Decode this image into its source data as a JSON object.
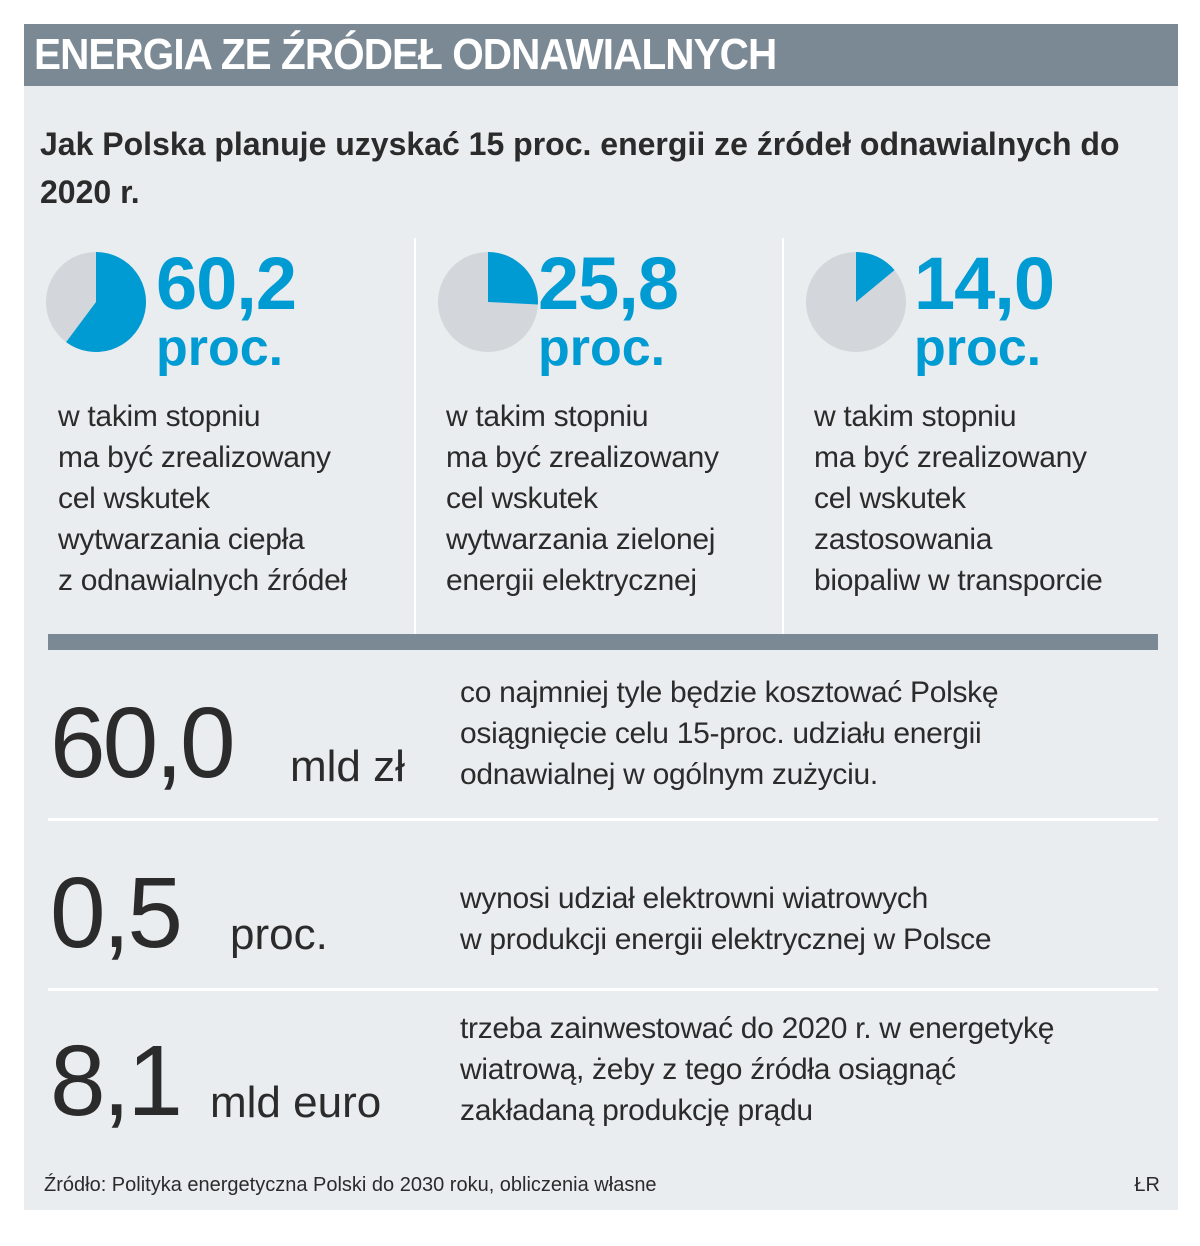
{
  "header": {
    "title": "ENERGIA ZE ŹRÓDEŁ ODNAWIALNYCH"
  },
  "subtitle": "Jak Polska planuje uzyskać 15 proc. energii ze źródeł odnawialnych do 2020 r.",
  "colors": {
    "accent": "#009bd2",
    "pie_base": "#d3d7db",
    "header_bg": "#7b8995",
    "panel_bg": "#eaedef"
  },
  "chart_data": {
    "type": "pie",
    "series": [
      {
        "value": 60.2,
        "value_label": "60,2",
        "unit": "proc.",
        "description": "w takim stopniu\nma być zrealizowany\ncel wskutek\nwytwarzania ciepła\nz odnawialnych źródeł"
      },
      {
        "value": 25.8,
        "value_label": "25,8",
        "unit": "proc.",
        "description": "w takim stopniu\nma być zrealizowany\ncel wskutek\nwytwarzania zielonej\nenergii elektrycznej"
      },
      {
        "value": 14.0,
        "value_label": "14,0",
        "unit": "proc.",
        "description": "w takim stopniu\nma być zrealizowany\ncel wskutek\nzastosowania\nbiopaliw w transporcie"
      }
    ]
  },
  "stats": [
    {
      "value": "60,0",
      "unit": "mld zł",
      "description": "co najmniej tyle będzie kosztować Polskę\nosiągnięcie celu 15-proc. udziału energii\nodnawialnej w ogólnym zużyciu."
    },
    {
      "value": "0,5",
      "unit": "proc.",
      "description": "wynosi udział elektrowni wiatrowych\nw produkcji energii elektrycznej w Polsce"
    },
    {
      "value": "8,1",
      "unit": "mld euro",
      "description": "trzeba zainwestować do 2020 r. w energetykę\nwiatrową, żeby z tego źródła osiągnąć\nzakładaną produkcję prądu"
    }
  ],
  "footer": {
    "source": "Źródło: Polityka energetyczna Polski do 2030 roku, obliczenia własne",
    "credit": "ŁR"
  }
}
